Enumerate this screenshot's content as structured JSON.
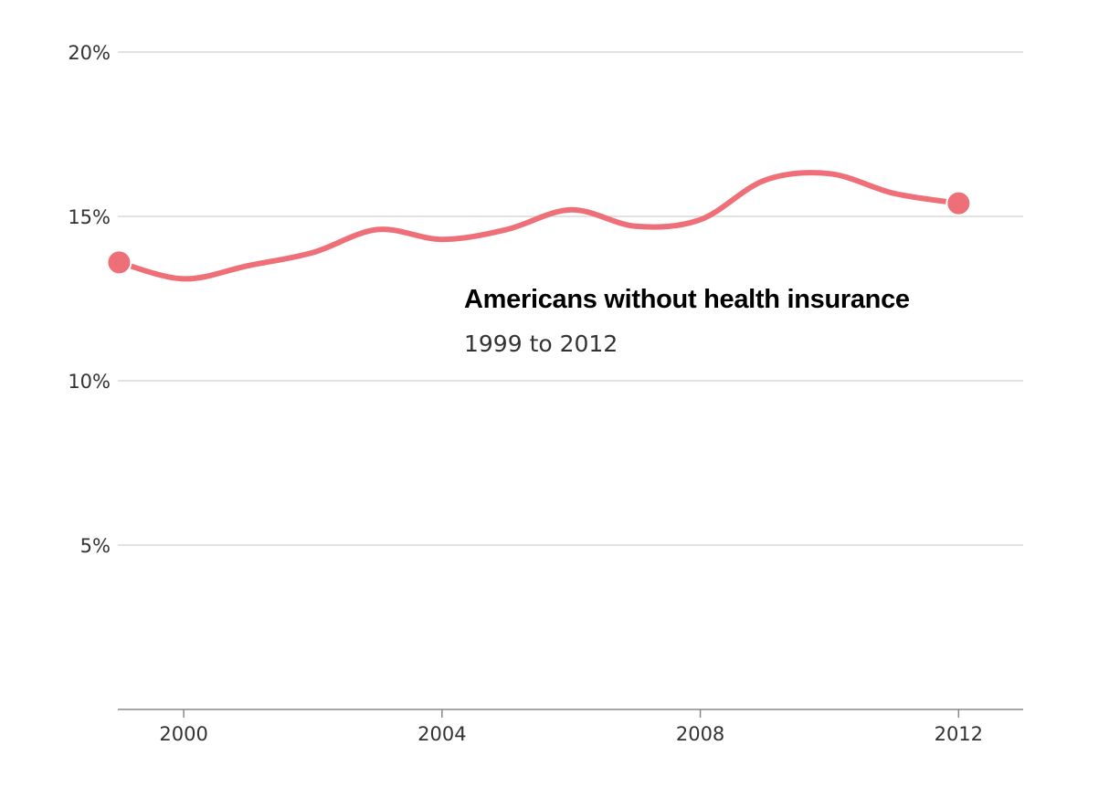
{
  "chart_data": {
    "type": "line",
    "title": "Americans without health insurance",
    "subtitle": "1999 to 2012",
    "xlabel": "",
    "ylabel": "",
    "x": [
      1999,
      2000,
      2001,
      2002,
      2003,
      2004,
      2005,
      2006,
      2007,
      2008,
      2009,
      2010,
      2011,
      2012
    ],
    "values": [
      13.6,
      13.1,
      13.5,
      13.9,
      14.6,
      14.3,
      14.6,
      15.2,
      14.7,
      14.9,
      16.1,
      16.3,
      15.7,
      15.4
    ],
    "xlim": [
      1998.98,
      2013
    ],
    "ylim": [
      0,
      20
    ],
    "x_ticks": [
      2000,
      2004,
      2008,
      2012
    ],
    "x_tick_labels": [
      "2000",
      "2004",
      "2008",
      "2012"
    ],
    "y_ticks": [
      5,
      10,
      15,
      20
    ],
    "y_tick_labels": [
      "5%",
      "10%",
      "15%",
      "20%"
    ],
    "grid": true,
    "legend": "none",
    "endpoint_markers": true,
    "line_color": "#ef6f78",
    "grid_color": "#d9d9d9",
    "axis_color": "#888888"
  }
}
